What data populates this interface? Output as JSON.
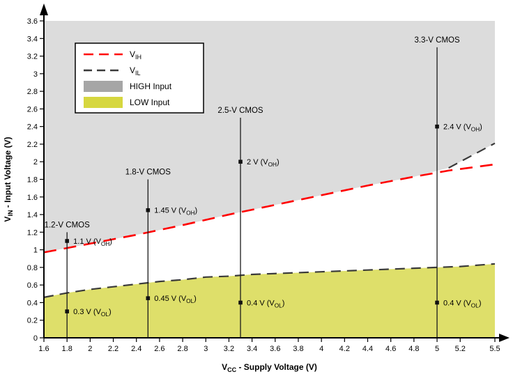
{
  "page": {
    "background": "#ffffff"
  },
  "chart_data": {
    "type": "line",
    "title": "",
    "xlabel": "V_{CC} - Supply Voltage (V)",
    "ylabel": "V_{IN} - Input Voltage (V)",
    "xlim": [
      1.6,
      5.5
    ],
    "ylim": [
      0,
      3.6
    ],
    "grid": false,
    "x_tick_values": [
      1.6,
      1.8,
      2,
      2.2,
      2.4,
      2.6,
      2.8,
      3,
      3.2,
      3.4,
      3.6,
      3.8,
      4,
      4.2,
      4.4,
      4.6,
      4.8,
      5,
      5.2,
      5.5
    ],
    "x_tick_labels": [
      "1.6",
      "1.8",
      "2",
      "2.2",
      "2.4",
      "2.6",
      "2.8",
      "3",
      "3.2",
      "3.4",
      "3.6",
      "3.8",
      "4",
      "4.2",
      "4.4",
      "4.6",
      "4.8",
      "5",
      "5.2",
      "5.5"
    ],
    "y_tick_values": [
      0,
      0.2,
      0.4,
      0.6,
      0.8,
      1,
      1.2,
      1.4,
      1.6,
      1.8,
      2,
      2.2,
      2.4,
      2.6,
      2.8,
      3,
      3.2,
      3.4,
      3.6
    ],
    "y_tick_labels": [
      "0",
      "0.2",
      "0.4",
      "0.6",
      "0.8",
      "1",
      "1.2",
      "1.4",
      "1.6",
      "1.8",
      "2",
      "2.2",
      "2.4",
      "2.6",
      "2.8",
      "3",
      "3.2",
      "3.4",
      "3.6"
    ],
    "series": [
      {
        "name": "V_{IH}",
        "color": "#ff0000",
        "dash": "18 11",
        "width": 2.6,
        "points": [
          [
            1.6,
            0.97
          ],
          [
            2.0,
            1.07
          ],
          [
            2.4,
            1.17
          ],
          [
            2.8,
            1.28
          ],
          [
            3.2,
            1.4
          ],
          [
            3.6,
            1.51
          ],
          [
            4.0,
            1.62
          ],
          [
            4.4,
            1.73
          ],
          [
            4.8,
            1.83
          ],
          [
            5.1,
            1.9
          ],
          [
            5.5,
            1.97
          ]
        ]
      },
      {
        "name": "V_{IL}",
        "color": "#3a3a3a",
        "dash": "14 9",
        "width": 2.2,
        "points": [
          [
            1.6,
            0.46
          ],
          [
            1.8,
            0.51
          ],
          [
            2.0,
            0.55
          ],
          [
            2.2,
            0.58
          ],
          [
            2.4,
            0.61
          ],
          [
            2.6,
            0.64
          ],
          [
            2.8,
            0.66
          ],
          [
            3.0,
            0.69
          ],
          [
            3.2,
            0.7
          ],
          [
            3.4,
            0.72
          ],
          [
            3.6,
            0.73
          ],
          [
            3.8,
            0.74
          ],
          [
            4.0,
            0.75
          ],
          [
            4.2,
            0.76
          ],
          [
            4.4,
            0.77
          ],
          [
            4.6,
            0.78
          ],
          [
            4.8,
            0.79
          ],
          [
            5.0,
            0.8
          ],
          [
            5.2,
            0.81
          ],
          [
            5.5,
            0.84
          ]
        ]
      },
      {
        "name": "V_{IH} boundary extension",
        "color": "#3a3a3a",
        "dash": "14 9",
        "width": 2.2,
        "points": [
          [
            5.1,
            1.93
          ],
          [
            5.5,
            2.21
          ]
        ]
      }
    ],
    "regions": [
      {
        "name": "HIGH Input",
        "color": "#dcdcdc",
        "fill_to": "top",
        "boundary": [
          [
            1.6,
            0.97
          ],
          [
            2.0,
            1.07
          ],
          [
            2.4,
            1.17
          ],
          [
            2.8,
            1.28
          ],
          [
            3.2,
            1.4
          ],
          [
            3.6,
            1.51
          ],
          [
            4.0,
            1.62
          ],
          [
            4.4,
            1.73
          ],
          [
            4.8,
            1.83
          ],
          [
            5.1,
            1.93
          ],
          [
            5.5,
            2.21
          ]
        ]
      },
      {
        "name": "LOW Input",
        "color": "#dedf6a",
        "fill_to": "bottom",
        "boundary": [
          [
            1.6,
            0.46
          ],
          [
            1.8,
            0.51
          ],
          [
            2.0,
            0.55
          ],
          [
            2.2,
            0.58
          ],
          [
            2.4,
            0.61
          ],
          [
            2.6,
            0.64
          ],
          [
            2.8,
            0.66
          ],
          [
            3.0,
            0.69
          ],
          [
            3.2,
            0.7
          ],
          [
            3.4,
            0.72
          ],
          [
            3.6,
            0.73
          ],
          [
            3.8,
            0.74
          ],
          [
            4.0,
            0.75
          ],
          [
            4.2,
            0.76
          ],
          [
            4.4,
            0.77
          ],
          [
            4.6,
            0.78
          ],
          [
            4.8,
            0.79
          ],
          [
            5.0,
            0.8
          ],
          [
            5.2,
            0.81
          ],
          [
            5.5,
            0.84
          ]
        ]
      }
    ],
    "drivers": [
      {
        "label": "1.2-V CMOS",
        "x": 1.8,
        "top": 1.2,
        "markers": [
          {
            "y": 1.1,
            "label": "1.1 V (V_{OH})"
          },
          {
            "y": 0.3,
            "label": "0.3 V (V_{OL})"
          }
        ]
      },
      {
        "label": "1.8-V CMOS",
        "x": 2.5,
        "top": 1.8,
        "markers": [
          {
            "y": 1.45,
            "label": "1.45 V (V_{OH})"
          },
          {
            "y": 0.45,
            "label": "0.45 V (V_{OL})"
          }
        ]
      },
      {
        "label": "2.5-V CMOS",
        "x": 3.3,
        "top": 2.5,
        "markers": [
          {
            "y": 2.0,
            "label": "2 V (V_{OH})"
          },
          {
            "y": 0.4,
            "label": "0.4 V (V_{OL})"
          }
        ]
      },
      {
        "label": "3.3-V CMOS",
        "x": 5.0,
        "top": 3.3,
        "markers": [
          {
            "y": 2.4,
            "label": "2.4 V (V_{OH})"
          },
          {
            "y": 0.4,
            "label": "0.4 V (V_{OL})"
          }
        ]
      }
    ],
    "legend": {
      "position": "top-left",
      "items": [
        {
          "type": "line",
          "color": "#ff0000",
          "dash": "14 8",
          "label": "V_{IH}"
        },
        {
          "type": "line",
          "color": "#3a3a3a",
          "dash": "12 7",
          "label": "V_{IL}"
        },
        {
          "type": "swatch",
          "color": "#a6a6a6",
          "label": "HIGH Input"
        },
        {
          "type": "swatch",
          "color": "#d6d73f",
          "label": "LOW Input"
        }
      ]
    },
    "axis_color": "#000000"
  }
}
